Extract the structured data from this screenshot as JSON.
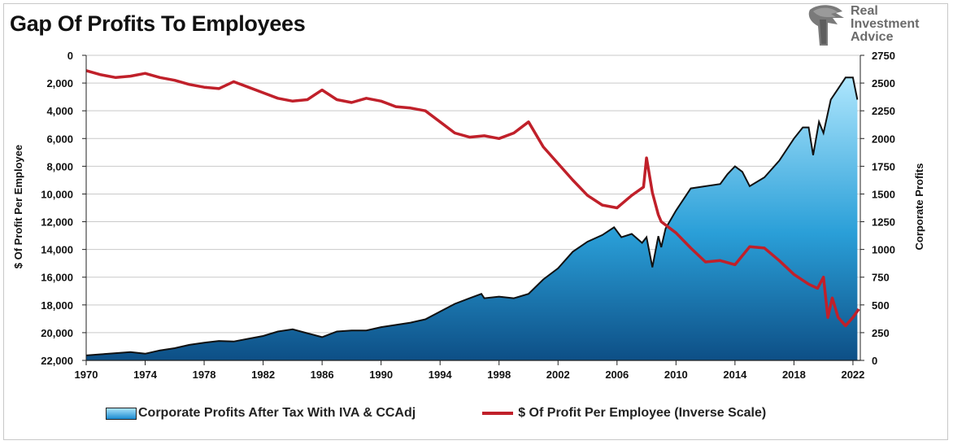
{
  "title": "Gap Of Profits To Employees",
  "logo": {
    "lines": [
      "Real",
      "Investment",
      "Advice"
    ],
    "icon": "eagle-head-icon"
  },
  "colors": {
    "area_top": "#aee6fd",
    "area_bottom": "#0d4f86",
    "area_stroke": "#111111",
    "line": "#c0202a",
    "grid": "#c9c9c9"
  },
  "chart_data": {
    "type": "area",
    "title": "Gap Of Profits To Employees",
    "xlabel": "",
    "x_ticks": [
      "1970",
      "1974",
      "1978",
      "1982",
      "1986",
      "1990",
      "1994",
      "1998",
      "2002",
      "2006",
      "2010",
      "2014",
      "2018",
      "2022"
    ],
    "xlim": [
      1970,
      2022.5
    ],
    "grid": "horizontal",
    "legend_position": "bottom",
    "left_axis": {
      "label": "$ Of Profit Per Employee",
      "inverted": true,
      "ylim": [
        0,
        22000
      ],
      "ticks": [
        "0",
        "2,000",
        "4,000",
        "6,000",
        "8,000",
        "10,000",
        "12,000",
        "14,000",
        "16,000",
        "18,000",
        "20,000",
        "22,000"
      ]
    },
    "right_axis": {
      "label": "Corporate Profits",
      "ylim": [
        0,
        2750
      ],
      "ticks": [
        "0",
        "250",
        "500",
        "750",
        "1000",
        "1250",
        "1500",
        "1750",
        "2000",
        "2250",
        "2500",
        "2750"
      ]
    },
    "series": [
      {
        "name": "Corporate Profits After Tax With IVA & CCAdj",
        "axis": "right",
        "type": "area",
        "x": [
          1970,
          1971,
          1972,
          1973,
          1974,
          1975,
          1976,
          1977,
          1978,
          1979,
          1980,
          1981,
          1982,
          1983,
          1984,
          1985,
          1986,
          1987,
          1988,
          1989,
          1990,
          1991,
          1992,
          1993,
          1994,
          1995,
          1996,
          1996.8,
          1997,
          1998,
          1999,
          2000,
          2001,
          2002,
          2003,
          2004,
          2005,
          2005.8,
          2006.3,
          2007,
          2007.7,
          2008,
          2008.4,
          2008.8,
          2009,
          2009.3,
          2010,
          2011,
          2012,
          2013,
          2013.5,
          2014,
          2014.5,
          2015,
          2016,
          2017,
          2018,
          2018.6,
          2019,
          2019.3,
          2019.7,
          2020,
          2020.5,
          2021,
          2021.5,
          2022,
          2022.3
        ],
        "values": [
          45,
          55,
          65,
          75,
          60,
          90,
          110,
          140,
          160,
          175,
          170,
          195,
          220,
          260,
          280,
          245,
          210,
          260,
          270,
          270,
          300,
          320,
          340,
          370,
          440,
          510,
          560,
          600,
          560,
          575,
          560,
          600,
          730,
          830,
          980,
          1070,
          1130,
          1200,
          1110,
          1140,
          1060,
          1110,
          840,
          1120,
          1020,
          1190,
          1350,
          1550,
          1570,
          1590,
          1680,
          1750,
          1700,
          1570,
          1650,
          1800,
          2000,
          2100,
          2100,
          1850,
          2150,
          2050,
          2350,
          2450,
          2550,
          2550,
          2350
        ]
      },
      {
        "name": "$ Of Profit Per Employee (Inverse Scale)",
        "axis": "left",
        "type": "line",
        "x": [
          1970,
          1971,
          1972,
          1973,
          1974,
          1975,
          1976,
          1977,
          1978,
          1979,
          1980,
          1981,
          1982,
          1983,
          1984,
          1985,
          1986,
          1987,
          1988,
          1989,
          1990,
          1991,
          1992,
          1993,
          1994,
          1995,
          1996,
          1997,
          1998,
          1999,
          2000,
          2001,
          2002,
          2003,
          2004,
          2005,
          2006,
          2007,
          2007.8,
          2008,
          2008.4,
          2008.8,
          2009,
          2010,
          2011,
          2012,
          2013,
          2014,
          2015,
          2016,
          2017,
          2018,
          2019,
          2019.6,
          2020,
          2020.3,
          2020.6,
          2021,
          2021.5,
          2022,
          2022.4
        ],
        "values": [
          1100,
          1400,
          1600,
          1500,
          1300,
          1600,
          1800,
          2100,
          2300,
          2400,
          1900,
          2300,
          2700,
          3100,
          3300,
          3200,
          2500,
          3200,
          3400,
          3100,
          3300,
          3700,
          3800,
          4000,
          4800,
          5600,
          5900,
          5800,
          6000,
          5600,
          4800,
          6600,
          7800,
          9000,
          10100,
          10800,
          11000,
          10100,
          9500,
          7400,
          9900,
          11500,
          12000,
          12800,
          13900,
          14900,
          14800,
          15100,
          13800,
          13900,
          14800,
          15800,
          16500,
          16800,
          16000,
          18900,
          17500,
          18900,
          19500,
          18900,
          18300
        ]
      }
    ]
  }
}
